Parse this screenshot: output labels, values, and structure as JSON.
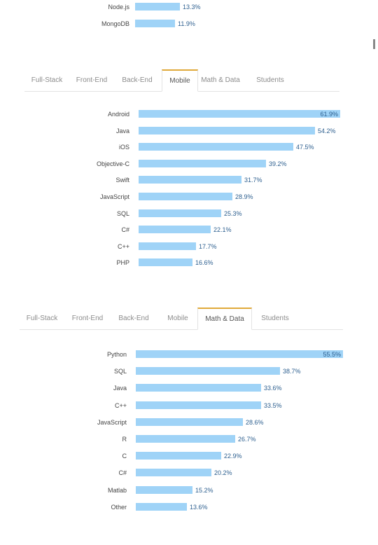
{
  "colors": {
    "bar": "#9fd3f7",
    "active_tab_accent": "#e0a93a",
    "value_text": "#2d5f8f"
  },
  "chart_data": [
    {
      "type": "bar",
      "orientation": "horizontal",
      "categories": [
        "Node.js",
        "MongoDB"
      ],
      "values": [
        13.3,
        11.9
      ],
      "value_labels": [
        "13.3%",
        "11.9%"
      ],
      "xlim": [
        0,
        62
      ]
    },
    {
      "type": "bar",
      "orientation": "horizontal",
      "tabs": [
        "Full-Stack",
        "Front-End",
        "Back-End",
        "Mobile",
        "Math & Data",
        "Students"
      ],
      "active_tab": "Mobile",
      "categories": [
        "Android",
        "Java",
        "iOS",
        "Objective-C",
        "Swift",
        "JavaScript",
        "SQL",
        "C#",
        "C++",
        "PHP"
      ],
      "values": [
        61.9,
        54.2,
        47.5,
        39.2,
        31.7,
        28.9,
        25.3,
        22.1,
        17.7,
        16.6
      ],
      "value_labels": [
        "61.9%",
        "54.2%",
        "47.5%",
        "39.2%",
        "31.7%",
        "28.9%",
        "25.3%",
        "22.1%",
        "17.7%",
        "16.6%"
      ],
      "xlim": [
        0,
        62
      ]
    },
    {
      "type": "bar",
      "orientation": "horizontal",
      "tabs": [
        "Full-Stack",
        "Front-End",
        "Back-End",
        "Mobile",
        "Math & Data",
        "Students"
      ],
      "active_tab": "Math & Data",
      "categories": [
        "Python",
        "SQL",
        "Java",
        "C++",
        "JavaScript",
        "R",
        "C",
        "C#",
        "Matlab",
        "Other"
      ],
      "values": [
        55.5,
        38.7,
        33.6,
        33.5,
        28.6,
        26.7,
        22.9,
        20.2,
        15.2,
        13.6
      ],
      "value_labels": [
        "55.5%",
        "38.7%",
        "33.6%",
        "33.5%",
        "28.6%",
        "26.7%",
        "22.9%",
        "20.2%",
        "15.2%",
        "13.6%"
      ],
      "xlim": [
        0,
        55.5
      ]
    }
  ]
}
